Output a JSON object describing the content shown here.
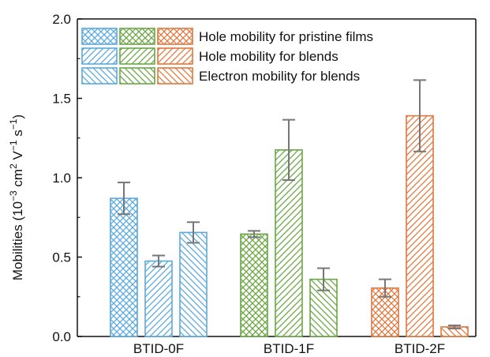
{
  "chart_data": {
    "type": "bar",
    "ylabel_main": "Mobilities (10",
    "ylabel_exp1": "−3",
    "ylabel_mid": " cm",
    "ylabel_exp2": "2",
    "ylabel_mid2": " V",
    "ylabel_exp3": "−1",
    "ylabel_mid3": " s",
    "ylabel_exp4": "−1",
    "ylabel_end": ")",
    "ylim": [
      0,
      2.0
    ],
    "yticks": [
      "0.0",
      "0.5",
      "1.0",
      "1.5",
      "2.0"
    ],
    "ytick_values": [
      0,
      0.5,
      1.0,
      1.5,
      2.0
    ],
    "categories": [
      "BTID-0F",
      "BTID-1F",
      "BTID-2F"
    ],
    "category_colors": [
      "#5aa9dc",
      "#6aa644",
      "#e0783e"
    ],
    "series": [
      {
        "name": "Hole mobility for pristine films",
        "pattern": "crosshatch",
        "values": [
          0.87,
          0.645,
          0.305
        ],
        "errors": [
          0.1,
          0.02,
          0.055
        ]
      },
      {
        "name": "Hole mobility for blends",
        "pattern": "forward-diagonal",
        "values": [
          0.475,
          1.175,
          1.39
        ],
        "errors": [
          0.035,
          0.19,
          0.225
        ]
      },
      {
        "name": "Electron mobility for blends",
        "pattern": "back-diagonal",
        "values": [
          0.655,
          0.36,
          0.06
        ],
        "errors": [
          0.065,
          0.07,
          0.01
        ]
      }
    ],
    "grid": false,
    "legend_position": "top-left",
    "error_bar_color": "#777777"
  }
}
